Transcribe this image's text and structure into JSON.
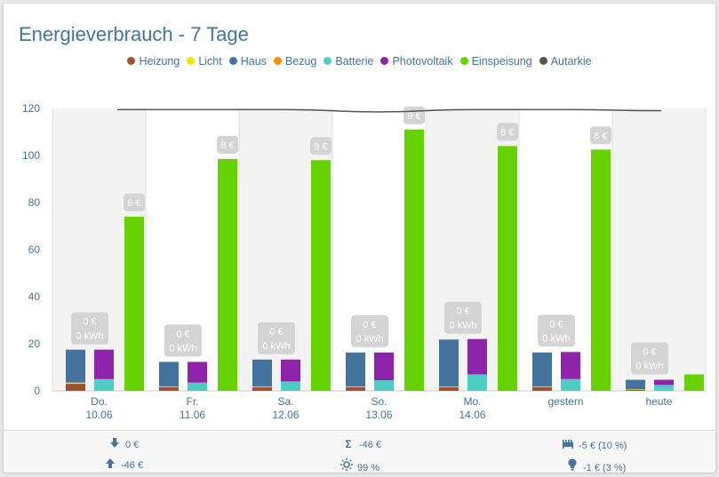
{
  "title": "Energieverbrauch - 7 Tage",
  "legend": [
    {
      "name": "Heizung",
      "color": "#a0522d"
    },
    {
      "name": "Licht",
      "color": "#f2e600"
    },
    {
      "name": "Haus",
      "color": "#44739e"
    },
    {
      "name": "Bezug",
      "color": "#ff8c00"
    },
    {
      "name": "Batterie",
      "color": "#4ecdc4"
    },
    {
      "name": "Photovoltaik",
      "color": "#8e24aa"
    },
    {
      "name": "Einspeisung",
      "color": "#66d200"
    },
    {
      "name": "Autarkie",
      "color": "#555555"
    }
  ],
  "chart_data": {
    "type": "bar",
    "ylim": [
      0,
      120
    ],
    "yticks": [
      0,
      20,
      40,
      60,
      80,
      100,
      120
    ],
    "grid": false,
    "legend_position": "top",
    "categories": [
      {
        "line1": "Do.",
        "line2": "10.06"
      },
      {
        "line1": "Fr.",
        "line2": "11.06"
      },
      {
        "line1": "Sa.",
        "line2": "12.06"
      },
      {
        "line1": "So.",
        "line2": "13.06"
      },
      {
        "line1": "Mo.",
        "line2": "14.06"
      },
      {
        "line1": "gestern",
        "line2": ""
      },
      {
        "line1": "heute",
        "line2": ""
      }
    ],
    "series": [
      {
        "name": "Heizung",
        "stack": "consumption",
        "values": [
          3,
          1.5,
          1.5,
          1.5,
          1.5,
          1.5,
          0.5
        ]
      },
      {
        "name": "Licht",
        "stack": "consumption",
        "values": [
          0.5,
          0.3,
          0.3,
          0.3,
          0.3,
          0.3,
          0.2
        ]
      },
      {
        "name": "Haus",
        "stack": "consumption",
        "values": [
          14,
          10.5,
          11.5,
          14.5,
          20,
          14.5,
          4
        ]
      },
      {
        "name": "Bezug",
        "stack": "sources",
        "values": [
          0,
          0,
          0,
          0,
          0,
          0,
          0
        ]
      },
      {
        "name": "Batterie",
        "stack": "sources",
        "values": [
          5,
          3.5,
          4,
          4.5,
          7,
          5,
          2.5
        ]
      },
      {
        "name": "Photovoltaik",
        "stack": "sources",
        "values": [
          12.5,
          8.8,
          9.3,
          11.8,
          15,
          11.5,
          2.2
        ]
      },
      {
        "name": "Einspeisung",
        "stack": "feedin",
        "values": [
          74,
          98.5,
          98,
          111,
          104,
          102.5,
          7
        ]
      }
    ],
    "autarkie": [
      119.5,
      119.5,
      119.5,
      118.5,
      119.5,
      119.5,
      119
    ],
    "bezug_labels": [
      {
        "cost": "0 €",
        "energy": "0 kWh"
      },
      {
        "cost": "0 €",
        "energy": "0 kWh"
      },
      {
        "cost": "0 €",
        "energy": "0 kWh"
      },
      {
        "cost": "0 €",
        "energy": "0 kWh"
      },
      {
        "cost": "0 €",
        "energy": "0 kWh"
      },
      {
        "cost": "0 €",
        "energy": "0 kWh"
      },
      {
        "cost": "0 €",
        "energy": "0 kWh"
      }
    ],
    "einspeisung_labels": [
      "6 €",
      "8 €",
      "8 €",
      "9 €",
      "8 €",
      "8 €",
      ""
    ]
  },
  "summary": {
    "bezug": {
      "icon": "arrow-down-icon",
      "text": "0 €"
    },
    "einspeisung": {
      "icon": "arrow-up-icon",
      "text": "-46 €"
    },
    "sum": {
      "icon": "sigma-icon",
      "text": "-46 €"
    },
    "autarkie": {
      "icon": "sun-icon",
      "text": "99 %"
    },
    "heizung": {
      "icon": "radiator-icon",
      "text": "-5 € (10 %)"
    },
    "licht": {
      "icon": "lightbulb-icon",
      "text": "-1 € (3 %)"
    }
  }
}
